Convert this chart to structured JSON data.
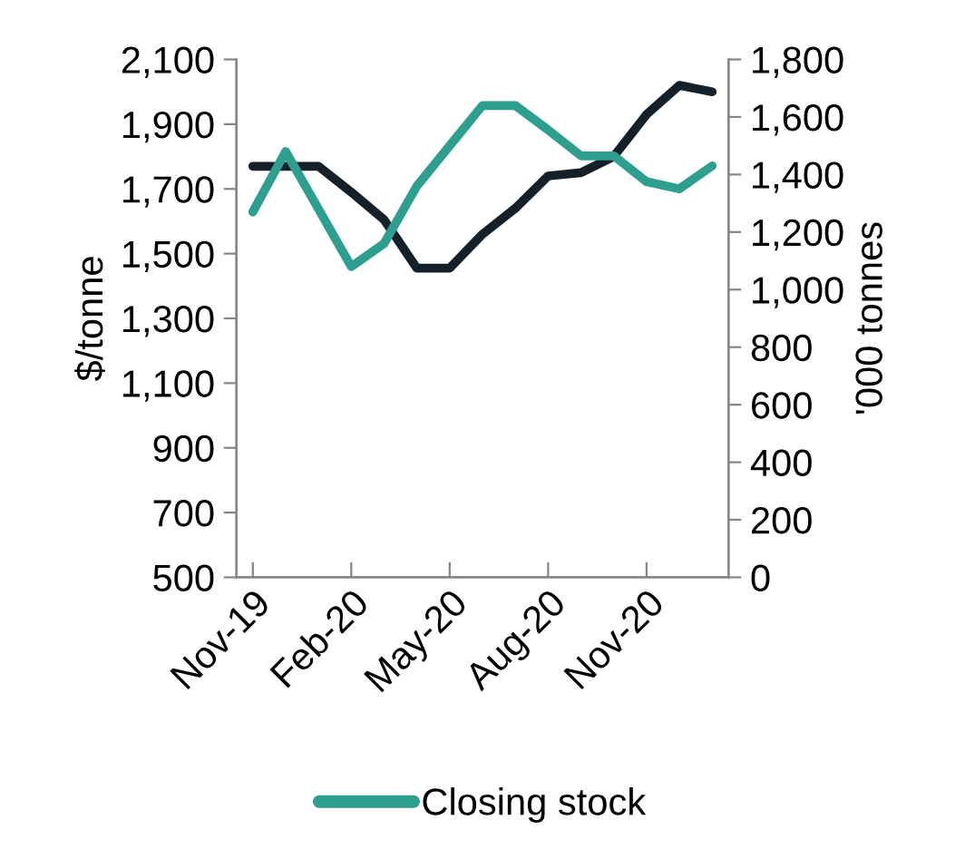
{
  "chart_data": {
    "type": "line",
    "ylabel": "$/tonne",
    "y2label": "'000 tonnes",
    "categories": [
      "Nov-19",
      null,
      null,
      "Feb-20",
      null,
      null,
      "May-20",
      null,
      null,
      "Aug-20",
      null,
      null,
      "Nov-20",
      null,
      null
    ],
    "series": [
      {
        "color": "#14212b",
        "values": [
          1770,
          1770,
          1770,
          1690,
          1605,
          1455,
          1455,
          1560,
          1640,
          1740,
          1750,
          1800,
          1930,
          2020,
          2000
        ]
      },
      {
        "name": "Closing stock",
        "color": "#2e9e8f",
        "axis": "y2",
        "values": [
          1270,
          1480,
          1280,
          1080,
          1160,
          1360,
          1500,
          1640,
          1640,
          1555,
          1465,
          1465,
          1375,
          1350,
          1430
        ]
      }
    ],
    "ylim": [
      500,
      2100
    ],
    "yticks": [
      {
        "value": 500,
        "label": "500"
      },
      {
        "value": 700,
        "label": "700"
      },
      {
        "value": 900,
        "label": "900"
      },
      {
        "value": 1100,
        "label": "1,100"
      },
      {
        "value": 1300,
        "label": "1,300"
      },
      {
        "value": 1500,
        "label": "1,500"
      },
      {
        "value": 1700,
        "label": "1,700"
      },
      {
        "value": 1900,
        "label": "1,900"
      },
      {
        "value": 2100,
        "label": "2,100"
      }
    ],
    "y2lim": [
      0,
      1800
    ],
    "y2ticks": [
      0,
      200,
      400,
      600,
      800,
      {
        "value": 1000,
        "label": "1,000"
      },
      {
        "value": 1200,
        "label": "1,200"
      },
      {
        "value": 1400,
        "label": "1,400"
      },
      {
        "value": 1600,
        "label": "1,600"
      },
      {
        "value": 1800,
        "label": "1,800"
      }
    ],
    "legend": "bottom",
    "grid": false
  }
}
